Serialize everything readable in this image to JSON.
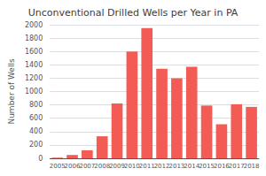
{
  "chart_data": {
    "type": "bar",
    "title": "Unconventional Drilled Wells per Year in PA",
    "ylabel": "Number of Wells",
    "categories": [
      "2005",
      "2006",
      "2007",
      "2008",
      "2009",
      "2010",
      "2011",
      "2012",
      "2013",
      "2014",
      "2015",
      "2016",
      "2017",
      "2018"
    ],
    "values": [
      10,
      50,
      120,
      330,
      820,
      1600,
      1950,
      1340,
      1200,
      1370,
      790,
      510,
      810,
      770
    ],
    "color": "#f25c54",
    "ylim": [
      0,
      2000
    ],
    "yticks": [
      0,
      200,
      400,
      600,
      800,
      1000,
      1200,
      1400,
      1600,
      1800,
      2000
    ],
    "grid": true
  }
}
